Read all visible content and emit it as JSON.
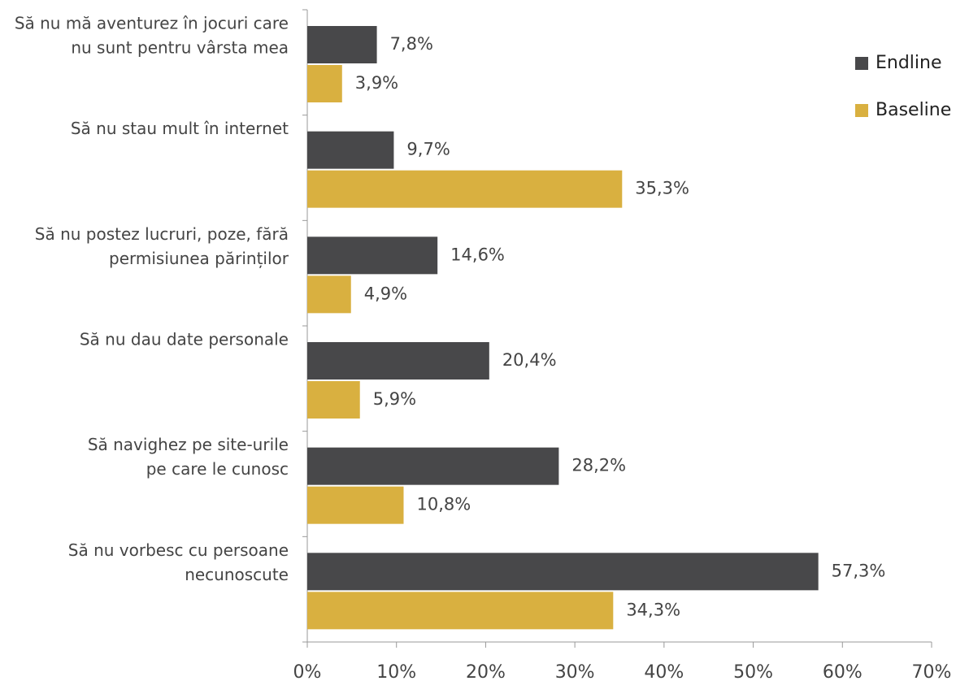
{
  "chart_data": {
    "type": "hbar",
    "categories": [
      [
        "Să nu mă aventurez în jocuri care",
        "nu sunt pentru vârsta mea"
      ],
      [
        "Să nu stau mult în internet"
      ],
      [
        "Să nu postez lucruri, poze, fără",
        "permisiunea părinților"
      ],
      [
        "Să nu dau date personale"
      ],
      [
        "Să navighez pe site-urile",
        "pe care le cunosc"
      ],
      [
        "Să nu vorbesc cu persoane",
        "necunoscute"
      ]
    ],
    "series": [
      {
        "name": "Endline",
        "color": "#48484a",
        "values": [
          7.8,
          9.7,
          14.6,
          20.4,
          28.2,
          57.3
        ],
        "value_labels": [
          "7,8%",
          "9,7%",
          "14,6%",
          "20,4%",
          "28,2%",
          "57,3%"
        ]
      },
      {
        "name": "Baseline",
        "color": "#d9b040",
        "values": [
          3.9,
          35.3,
          4.9,
          5.9,
          10.8,
          34.3
        ],
        "value_labels": [
          "3,9%",
          "35,3%",
          "4,9%",
          "5,9%",
          "10,8%",
          "34,3%"
        ]
      }
    ],
    "xlim": [
      0,
      70
    ],
    "xticks": [
      {
        "value": 0,
        "label": "0%"
      },
      {
        "value": 10,
        "label": "10%"
      },
      {
        "value": 20,
        "label": "20%"
      },
      {
        "value": 30,
        "label": "30%"
      },
      {
        "value": 40,
        "label": "40%"
      },
      {
        "value": 50,
        "label": "50%"
      },
      {
        "value": 60,
        "label": "60%"
      },
      {
        "value": 70,
        "label": "70%"
      }
    ],
    "legend": "right"
  }
}
